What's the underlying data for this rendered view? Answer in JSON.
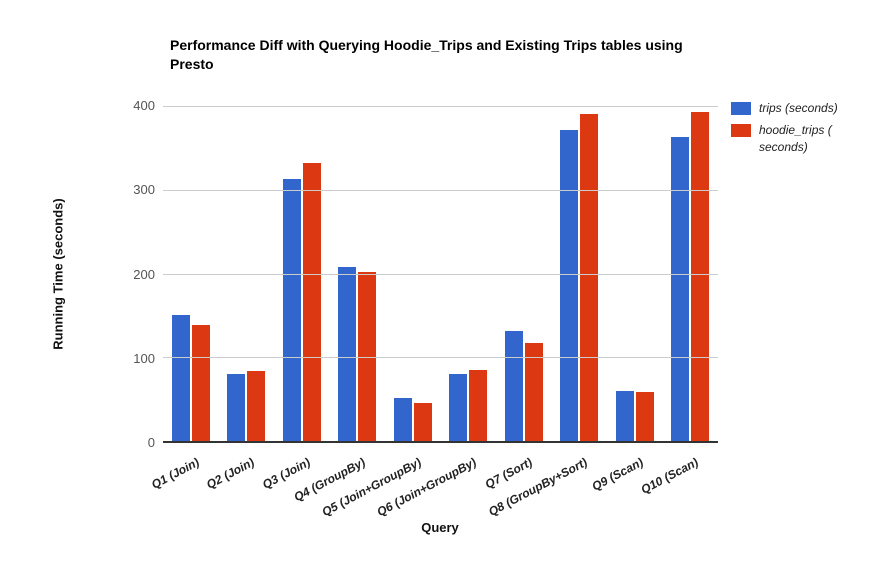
{
  "title": "Performance Diff with Querying Hoodie_Trips and Existing Trips tables using Presto",
  "chart_data": {
    "type": "bar",
    "title": "Performance Diff with Querying Hoodie_Trips and Existing Trips tables using Presto",
    "categories": [
      "Q1 (Join)",
      "Q2 (Join)",
      "Q3 (Join)",
      "Q4 (GroupBy)",
      "Q5 (Join+GroupBy)",
      "Q6 (Join+GroupBy)",
      "Q7 (Sort)",
      "Q8 (GroupBy+Sort)",
      "Q9 (Scan)",
      "Q10 (Scan)"
    ],
    "series": [
      {
        "name": "trips (seconds)",
        "color": "#3366CC",
        "values": [
          150,
          80,
          313,
          208,
          51,
          80,
          131,
          371,
          60,
          363
        ]
      },
      {
        "name": "hoodie_trips ( seconds)",
        "color": "#DC3912",
        "values": [
          138,
          84,
          332,
          202,
          45,
          85,
          117,
          390,
          59,
          393
        ]
      }
    ],
    "xlabel": "Query",
    "ylabel": "Running Time (seconds)",
    "ylim": [
      0,
      400
    ],
    "y_ticks": [
      0,
      100,
      200,
      300,
      400
    ],
    "grid": true,
    "legend_position": "right"
  },
  "colors": {
    "grid": "#cccccc",
    "axis_baseline": "#333333",
    "tick_text": "#555555",
    "label_text": "#222222",
    "background": "#ffffff"
  }
}
